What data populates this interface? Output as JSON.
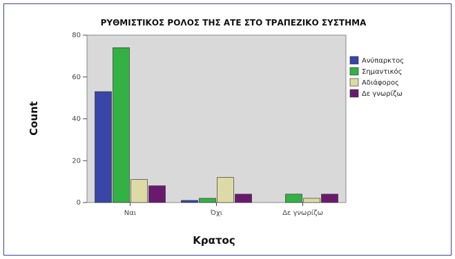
{
  "chart_data": {
    "type": "bar",
    "title": "ΡΥΘΜΙΣΤΙΚΟΣ ΡΟΛΟΣ ΤΗΣ ΑΤΕ ΣΤΟ ΤΡΑΠΕΖΙΚΟ ΣΥΣΤΗΜΑ",
    "xlabel": "Κρατος",
    "ylabel": "Count",
    "ylim": [
      0,
      80
    ],
    "yticks": [
      0,
      20,
      40,
      60,
      80
    ],
    "categories": [
      "Ναι",
      "Όχι",
      "Δε γνωρίζω"
    ],
    "series": [
      {
        "name": "Ανύπαρκτος",
        "color": "#3a45a8",
        "values": [
          53,
          1,
          0
        ]
      },
      {
        "name": "Σημαντικός",
        "color": "#33b244",
        "values": [
          74,
          2,
          4
        ]
      },
      {
        "name": "Αδιάφορος",
        "color": "#dedaa6",
        "values": [
          11,
          12,
          2
        ]
      },
      {
        "name": "Δε γνωρίζω",
        "color": "#6a1a6e",
        "values": [
          8,
          4,
          4
        ]
      }
    ],
    "legend_position": "right",
    "grid": false,
    "plot_background": "#d9d9d9"
  }
}
